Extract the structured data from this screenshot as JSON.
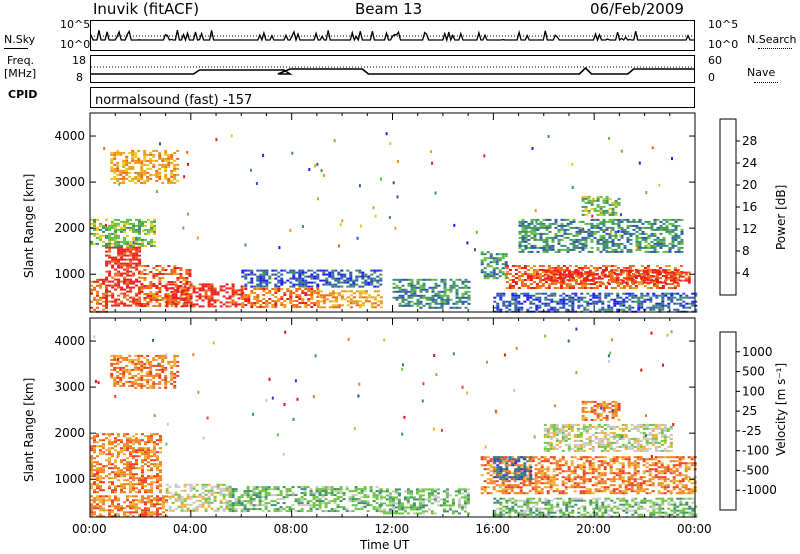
{
  "header": {
    "station": "Inuvik (fitACF)",
    "beam": "Beam 13",
    "date": "06/Feb/2009"
  },
  "strips": {
    "nsky_label": "N.Sky",
    "nsky_ticks": [
      "10^5",
      "10^0"
    ],
    "nsearch_label": "N.Search",
    "nsearch_ticks": [
      "10^5",
      "10^0"
    ],
    "freq_label_line1": "Freq.",
    "freq_label_line2": "[MHz]",
    "freq_ticks": [
      "18",
      "8"
    ],
    "nave_label": "Nave",
    "nave_ticks": [
      "60",
      "0"
    ],
    "cpid_label": "CPID",
    "cpid_text": "normalsound (fast) -157"
  },
  "chart_data": [
    {
      "type": "heatmap",
      "title": "",
      "xlabel": "Time UT",
      "ylabel": "Slant Range [km]",
      "x_ticks": [
        "00:00",
        "04:00",
        "08:00",
        "12:00",
        "16:00",
        "20:00",
        "00:00"
      ],
      "y_ticks": [
        1000,
        2000,
        3000,
        4000
      ],
      "ylim": [
        180,
        4500
      ],
      "xlim_hours": [
        0,
        24
      ],
      "colorbar": {
        "label": "Power [dB]",
        "ticks": [
          "4",
          "8",
          "12",
          "16",
          "20",
          "24",
          "28"
        ],
        "colors": [
          "#1a1aff",
          "#2f56b4",
          "#3f8f6a",
          "#5fbf3f",
          "#e8c81e",
          "#f09a1c",
          "#f06a1a",
          "#ee1f1f"
        ]
      },
      "regions": [
        {
          "t0": 0.0,
          "t1": 0.6,
          "r0": 200,
          "r1": 900,
          "level": 6
        },
        {
          "t0": 0.6,
          "t1": 2.0,
          "r0": 300,
          "r1": 1600,
          "level": 7
        },
        {
          "t0": 2.0,
          "t1": 4.0,
          "r0": 300,
          "r1": 1200,
          "level": 6
        },
        {
          "t0": 3.0,
          "t1": 6.0,
          "r0": 300,
          "r1": 800,
          "level": 7
        },
        {
          "t0": 6.0,
          "t1": 9.0,
          "r0": 300,
          "r1": 700,
          "level": 6
        },
        {
          "t0": 9.0,
          "t1": 11.5,
          "r0": 300,
          "r1": 650,
          "level": 5
        },
        {
          "t0": 0.0,
          "t1": 2.5,
          "r0": 1600,
          "r1": 2200,
          "level": 3
        },
        {
          "t0": 0.8,
          "t1": 3.5,
          "r0": 3000,
          "r1": 3700,
          "level": 5
        },
        {
          "t0": 6.0,
          "t1": 11.5,
          "r0": 750,
          "r1": 1100,
          "level": 1
        },
        {
          "t0": 12.0,
          "t1": 15.0,
          "r0": 250,
          "r1": 900,
          "level": 2
        },
        {
          "t0": 15.5,
          "t1": 16.5,
          "r0": 900,
          "r1": 1500,
          "level": 2
        },
        {
          "t0": 16.5,
          "t1": 23.5,
          "r0": 700,
          "r1": 1200,
          "level": 6
        },
        {
          "t0": 18.0,
          "t1": 23.8,
          "r0": 800,
          "r1": 1100,
          "level": 7
        },
        {
          "t0": 17.0,
          "t1": 23.5,
          "r0": 1500,
          "r1": 2200,
          "level": 2
        },
        {
          "t0": 19.5,
          "t1": 21.0,
          "r0": 2300,
          "r1": 2700,
          "level": 3
        },
        {
          "t0": 16.0,
          "t1": 24.0,
          "r0": 200,
          "r1": 600,
          "level": 1
        }
      ]
    },
    {
      "type": "heatmap",
      "title": "",
      "xlabel": "Time UT",
      "ylabel": "Slant Range [km]",
      "x_ticks": [
        "00:00",
        "04:00",
        "08:00",
        "12:00",
        "16:00",
        "20:00",
        "00:00"
      ],
      "y_ticks": [
        1000,
        2000,
        3000,
        4000
      ],
      "ylim": [
        180,
        4500
      ],
      "xlim_hours": [
        0,
        24
      ],
      "colorbar": {
        "label": "Velocity [m s⁻¹]",
        "ticks": [
          "1000",
          "500",
          "100",
          "25",
          "-25",
          "-100",
          "-500",
          "-1000"
        ],
        "colors": [
          "#2a3fbf",
          "#2f6fa0",
          "#3f8f6a",
          "#6cc53f",
          "#c8c8c8",
          "#f0b030",
          "#f08020",
          "#f04020",
          "#ee1010"
        ]
      },
      "regions": [
        {
          "t0": 0.0,
          "t1": 2.8,
          "r0": 700,
          "r1": 2000,
          "level": 6
        },
        {
          "t0": 0.8,
          "t1": 3.5,
          "r0": 3000,
          "r1": 3700,
          "level": 6
        },
        {
          "t0": 3.0,
          "t1": 5.5,
          "r0": 300,
          "r1": 900,
          "level": 4
        },
        {
          "t0": 5.5,
          "t1": 11.5,
          "r0": 300,
          "r1": 850,
          "level": 3
        },
        {
          "t0": 0.0,
          "t1": 3.0,
          "r0": 200,
          "r1": 650,
          "level": 6
        },
        {
          "t0": 11.5,
          "t1": 15.0,
          "r0": 250,
          "r1": 800,
          "level": 3
        },
        {
          "t0": 15.5,
          "t1": 24.0,
          "r0": 700,
          "r1": 1500,
          "level": 6
        },
        {
          "t0": 16.0,
          "t1": 17.5,
          "r0": 1000,
          "r1": 1500,
          "level": 1
        },
        {
          "t0": 18.0,
          "t1": 23.0,
          "r0": 1600,
          "r1": 2200,
          "level": 4
        },
        {
          "t0": 19.5,
          "t1": 21.0,
          "r0": 2300,
          "r1": 2700,
          "level": 6
        },
        {
          "t0": 16.0,
          "t1": 24.0,
          "r0": 200,
          "r1": 600,
          "level": 3
        }
      ]
    }
  ]
}
